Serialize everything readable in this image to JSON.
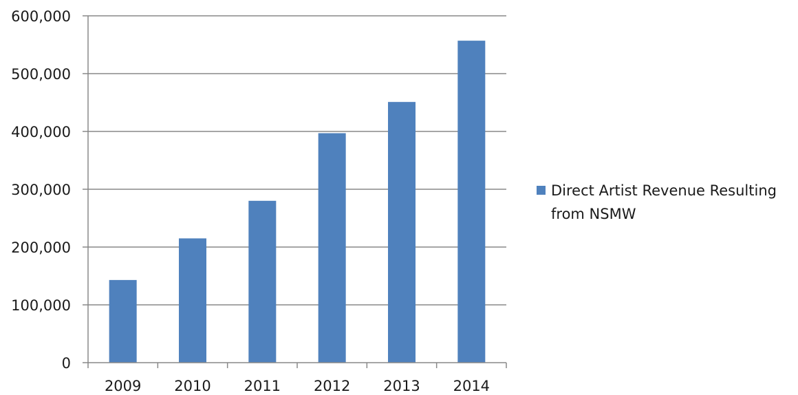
{
  "chart_data": {
    "type": "bar",
    "categories": [
      "2009",
      "2010",
      "2011",
      "2012",
      "2013",
      "2014"
    ],
    "series": [
      {
        "name": "Direct Artist Revenue Resulting from NSMW",
        "values": [
          143000,
          215000,
          280000,
          397000,
          451000,
          557000
        ],
        "color": "#4f81bd"
      }
    ],
    "title": "",
    "xlabel": "",
    "ylabel": "",
    "ylim": [
      0,
      600000
    ],
    "ytick_labels": [
      "0",
      "100,000",
      "200,000",
      "300,000",
      "400,000",
      "500,000",
      "600,000"
    ],
    "grid": true,
    "legend_position": "right",
    "legend_lines": [
      "Direct Artist Revenue Resulting",
      "from NSMW"
    ],
    "colors": {
      "bar": "#4f81bd",
      "grid": "#888888",
      "axis": "#888888",
      "text": "#1a1a1a"
    }
  }
}
